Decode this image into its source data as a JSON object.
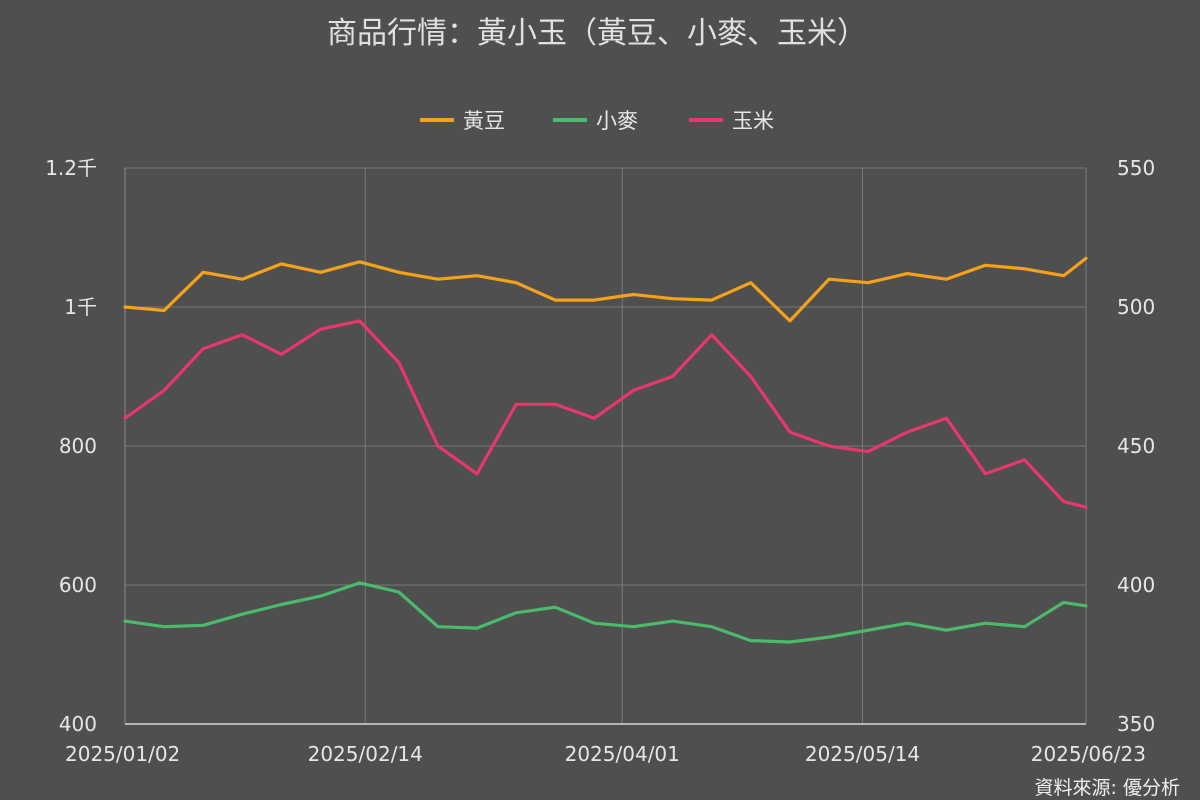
{
  "chart_data": {
    "type": "line",
    "title": "商品行情：黃小玉（黃豆、小麥、玉米）",
    "source": "資料來源: 優分析",
    "x_ticks": [
      "2025/01/02",
      "2025/02/14",
      "2025/04/01",
      "2025/05/14",
      "2025/06/23"
    ],
    "left_axis": {
      "ylim": [
        400,
        1200
      ],
      "ticks": [
        400,
        600,
        800,
        1000,
        1200
      ],
      "tick_labels": [
        "400",
        "600",
        "800",
        "1千",
        "1.2千"
      ]
    },
    "right_axis": {
      "ylim": [
        350,
        550
      ],
      "ticks": [
        350,
        400,
        450,
        500,
        550
      ],
      "tick_labels": [
        "350",
        "400",
        "450",
        "500",
        "550"
      ]
    },
    "legend": {
      "position": "top-center"
    },
    "grid": true,
    "series": [
      {
        "name": "黃豆",
        "color": "#f5a21b",
        "axis": "left",
        "x": [
          "2025/01/02",
          "2025/01/09",
          "2025/01/16",
          "2025/01/23",
          "2025/01/30",
          "2025/02/06",
          "2025/02/13",
          "2025/02/20",
          "2025/02/27",
          "2025/03/06",
          "2025/03/13",
          "2025/03/20",
          "2025/03/27",
          "2025/04/03",
          "2025/04/10",
          "2025/04/17",
          "2025/04/24",
          "2025/05/01",
          "2025/05/08",
          "2025/05/15",
          "2025/05/22",
          "2025/05/29",
          "2025/06/05",
          "2025/06/12",
          "2025/06/19",
          "2025/06/23"
        ],
        "values": [
          1000,
          995,
          1050,
          1040,
          1062,
          1050,
          1065,
          1050,
          1040,
          1045,
          1035,
          1010,
          1010,
          1018,
          1012,
          1010,
          1035,
          980,
          1040,
          1035,
          1048,
          1040,
          1060,
          1055,
          1045,
          1070
        ]
      },
      {
        "name": "小麥",
        "color": "#4cba6b",
        "axis": "left",
        "x": [
          "2025/01/02",
          "2025/01/09",
          "2025/01/16",
          "2025/01/23",
          "2025/01/30",
          "2025/02/06",
          "2025/02/13",
          "2025/02/20",
          "2025/02/27",
          "2025/03/06",
          "2025/03/13",
          "2025/03/20",
          "2025/03/27",
          "2025/04/03",
          "2025/04/10",
          "2025/04/17",
          "2025/04/24",
          "2025/05/01",
          "2025/05/08",
          "2025/05/15",
          "2025/05/22",
          "2025/05/29",
          "2025/06/05",
          "2025/06/12",
          "2025/06/19",
          "2025/06/23"
        ],
        "values": [
          548,
          540,
          542,
          558,
          572,
          584,
          603,
          590,
          540,
          538,
          560,
          568,
          545,
          540,
          548,
          540,
          520,
          518,
          525,
          535,
          545,
          535,
          545,
          540,
          575,
          570
        ]
      },
      {
        "name": "玉米",
        "color": "#e8376c",
        "axis": "right",
        "x": [
          "2025/01/02",
          "2025/01/09",
          "2025/01/16",
          "2025/01/23",
          "2025/01/30",
          "2025/02/06",
          "2025/02/13",
          "2025/02/20",
          "2025/02/27",
          "2025/03/06",
          "2025/03/13",
          "2025/03/20",
          "2025/03/27",
          "2025/04/03",
          "2025/04/10",
          "2025/04/17",
          "2025/04/24",
          "2025/05/01",
          "2025/05/08",
          "2025/05/15",
          "2025/05/22",
          "2025/05/29",
          "2025/06/05",
          "2025/06/12",
          "2025/06/19",
          "2025/06/23"
        ],
        "values": [
          460,
          470,
          485,
          490,
          483,
          492,
          495,
          480,
          450,
          440,
          465,
          465,
          460,
          470,
          475,
          490,
          475,
          455,
          450,
          448,
          455,
          460,
          440,
          445,
          430,
          428
        ]
      }
    ]
  }
}
